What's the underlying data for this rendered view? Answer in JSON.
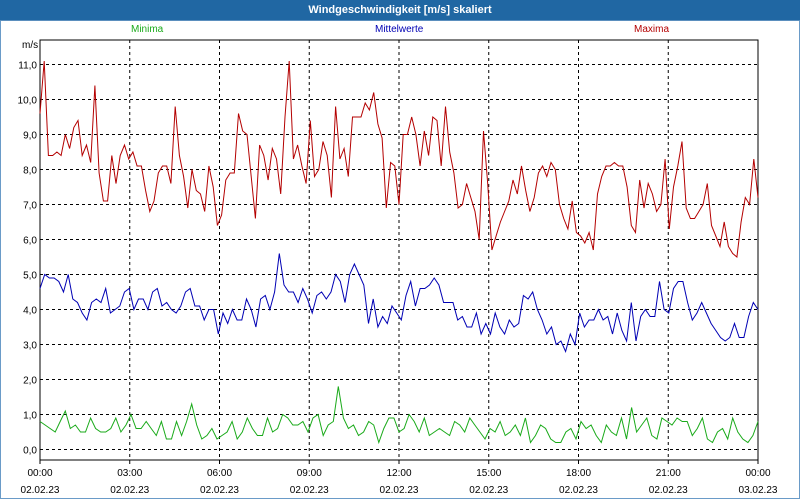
{
  "title": "Windgeschwindigkeit [m/s] skaliert",
  "chart_data": {
    "type": "line",
    "unit_label": "m/s",
    "ylim": [
      -0.3,
      11.7
    ],
    "grid": true,
    "legend": "top",
    "y_ticks": [
      "0,0",
      "1,0",
      "2,0",
      "3,0",
      "4,0",
      "5,0",
      "6,0",
      "7,0",
      "8,0",
      "9,0",
      "10,0",
      "11,0"
    ],
    "x_ticks": [
      {
        "time": "00:00",
        "date": "02.02.23"
      },
      {
        "time": "03:00",
        "date": "02.02.23"
      },
      {
        "time": "06:00",
        "date": "02.02.23"
      },
      {
        "time": "09:00",
        "date": "02.02.23"
      },
      {
        "time": "12:00",
        "date": "02.02.23"
      },
      {
        "time": "15:00",
        "date": "02.02.23"
      },
      {
        "time": "18:00",
        "date": "02.02.23"
      },
      {
        "time": "21:00",
        "date": "02.02.23"
      },
      {
        "time": "00:00",
        "date": "03.02.23"
      }
    ],
    "series": [
      {
        "name": "Minima",
        "color": "#1aaa1a",
        "values": [
          0.8,
          0.7,
          0.6,
          0.5,
          0.8,
          1.1,
          0.6,
          0.7,
          0.5,
          0.5,
          0.9,
          0.6,
          0.5,
          0.5,
          0.6,
          0.9,
          0.5,
          0.7,
          1.0,
          0.6,
          0.6,
          0.8,
          0.6,
          0.4,
          0.8,
          0.3,
          0.3,
          0.8,
          0.4,
          0.8,
          1.3,
          0.7,
          0.3,
          0.4,
          0.6,
          0.3,
          0.4,
          0.5,
          0.8,
          0.3,
          0.5,
          0.9,
          0.6,
          0.4,
          0.4,
          0.9,
          0.5,
          0.6,
          1.0,
          0.9,
          0.7,
          0.7,
          0.8,
          0.5,
          0.9,
          1.0,
          0.4,
          0.7,
          0.8,
          1.8,
          0.9,
          0.6,
          0.7,
          0.4,
          0.5,
          0.8,
          0.7,
          0.2,
          0.6,
          0.9,
          0.9,
          0.5,
          0.6,
          1.0,
          0.8,
          0.5,
          0.9,
          0.4,
          0.5,
          0.6,
          0.5,
          0.4,
          0.8,
          0.7,
          0.5,
          0.9,
          0.7,
          0.5,
          0.3,
          0.6,
          0.5,
          0.8,
          0.4,
          0.5,
          0.7,
          0.4,
          0.9,
          0.2,
          0.4,
          0.7,
          0.6,
          0.3,
          0.2,
          0.2,
          0.5,
          0.6,
          0.3,
          0.8,
          0.6,
          0.7,
          0.4,
          0.2,
          0.7,
          0.5,
          0.4,
          0.9,
          0.3,
          1.2,
          0.5,
          0.7,
          0.9,
          0.4,
          0.3,
          0.9,
          0.8,
          0.7,
          0.9,
          0.8,
          0.8,
          0.4,
          0.6,
          0.9,
          0.3,
          0.2,
          0.5,
          0.6,
          0.3,
          0.9,
          0.5,
          0.3,
          0.2,
          0.4,
          0.8
        ]
      },
      {
        "name": "Mittelwerte",
        "color": "#0000b4",
        "values": [
          4.6,
          5.0,
          4.9,
          4.9,
          4.8,
          4.5,
          5.0,
          4.3,
          4.2,
          3.9,
          3.7,
          4.2,
          4.3,
          4.2,
          4.6,
          3.9,
          4.0,
          4.1,
          4.5,
          4.6,
          4.0,
          4.3,
          4.3,
          4.0,
          4.5,
          4.6,
          4.1,
          4.2,
          4.0,
          3.9,
          4.1,
          4.5,
          4.6,
          4.1,
          4.1,
          3.7,
          4.0,
          4.0,
          3.3,
          3.9,
          3.6,
          4.0,
          3.7,
          3.7,
          4.3,
          4.0,
          3.5,
          4.3,
          4.4,
          4.0,
          4.5,
          5.6,
          4.7,
          4.5,
          4.5,
          4.2,
          4.6,
          4.3,
          3.9,
          4.4,
          4.5,
          4.3,
          4.5,
          5.0,
          4.8,
          4.2,
          5.0,
          5.3,
          5.0,
          4.7,
          3.6,
          4.3,
          3.5,
          3.8,
          3.6,
          4.1,
          3.9,
          3.7,
          4.4,
          4.8,
          4.1,
          4.6,
          4.6,
          4.7,
          4.9,
          4.7,
          4.2,
          4.2,
          4.2,
          3.7,
          3.8,
          3.5,
          3.5,
          3.9,
          3.3,
          3.6,
          3.3,
          3.9,
          3.5,
          3.3,
          3.7,
          3.5,
          3.6,
          4.4,
          4.3,
          4.5,
          4.0,
          3.7,
          3.3,
          3.5,
          3.0,
          3.1,
          2.8,
          3.3,
          3.0,
          3.9,
          3.5,
          3.7,
          3.7,
          4.0,
          3.7,
          3.8,
          3.3,
          3.9,
          3.4,
          3.1,
          4.2,
          3.1,
          3.8,
          4.0,
          3.8,
          3.8,
          4.8,
          4.0,
          3.9,
          4.6,
          4.8,
          4.8,
          4.2,
          3.7,
          3.9,
          4.2,
          3.9,
          3.6,
          3.4,
          3.2,
          3.1,
          3.2,
          3.6,
          3.2,
          3.2,
          3.8,
          4.2,
          4.0
        ]
      },
      {
        "name": "Maxima",
        "color": "#b40000",
        "values": [
          9.6,
          11.1,
          8.4,
          8.4,
          8.5,
          8.4,
          9.0,
          8.6,
          9.2,
          9.4,
          8.4,
          8.7,
          8.2,
          10.4,
          7.9,
          7.1,
          7.1,
          8.4,
          7.6,
          8.4,
          8.7,
          8.3,
          8.5,
          8.1,
          8.1,
          7.4,
          6.8,
          7.1,
          7.9,
          8.1,
          8.1,
          7.6,
          9.8,
          8.4,
          7.8,
          6.9,
          8.0,
          7.4,
          7.3,
          6.8,
          8.1,
          7.5,
          6.4,
          6.7,
          7.7,
          7.9,
          7.9,
          9.6,
          9.1,
          9.0,
          7.8,
          6.6,
          8.7,
          8.4,
          7.7,
          8.6,
          8.3,
          7.3,
          9.5,
          11.1,
          8.3,
          8.7,
          8.1,
          7.6,
          9.4,
          7.8,
          8.0,
          8.8,
          8.4,
          7.2,
          9.8,
          8.3,
          8.6,
          7.8,
          9.5,
          9.5,
          9.5,
          9.9,
          9.7,
          10.2,
          9.3,
          8.9,
          6.9,
          8.2,
          8.1,
          7.0,
          9.0,
          9.0,
          9.5,
          9.0,
          8.1,
          9.1,
          8.4,
          9.5,
          9.4,
          8.1,
          9.8,
          8.5,
          7.9,
          6.9,
          7.0,
          7.6,
          7.2,
          6.8,
          6.0,
          9.1,
          7.6,
          5.7,
          6.1,
          6.5,
          6.8,
          7.1,
          7.7,
          7.3,
          8.1,
          7.4,
          6.8,
          7.2,
          7.9,
          8.1,
          7.8,
          8.2,
          8.0,
          7.0,
          6.6,
          6.3,
          7.1,
          6.2,
          6.1,
          5.9,
          6.2,
          5.7,
          7.3,
          7.8,
          8.1,
          8.1,
          8.2,
          8.1,
          8.1,
          7.5,
          6.4,
          6.2,
          7.7,
          6.9,
          7.6,
          7.3,
          6.8,
          7.0,
          8.3,
          6.3,
          7.5,
          8.1,
          8.8,
          6.9,
          6.6,
          6.6,
          6.8,
          7.0,
          7.6,
          6.4,
          6.1,
          5.8,
          6.5,
          5.8,
          5.6,
          5.5,
          6.5,
          7.2,
          7.0,
          8.3,
          7.2
        ]
      }
    ]
  }
}
